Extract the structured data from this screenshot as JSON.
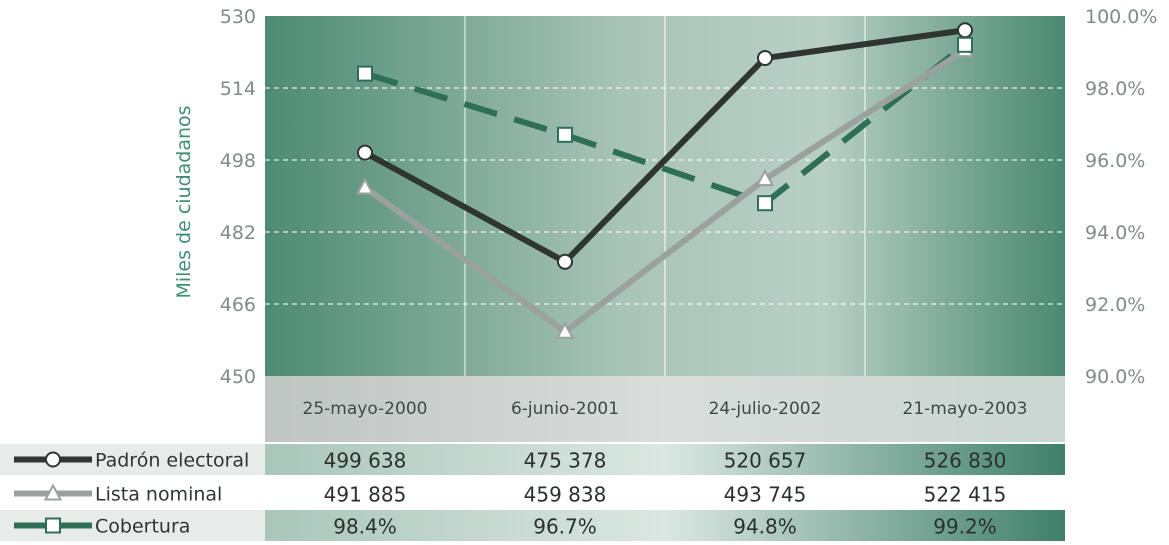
{
  "chart_data": {
    "type": "line",
    "ylabel": "Miles de ciudadanos",
    "categories": [
      "25-mayo-2000",
      "6-junio-2001",
      "24-julio-2002",
      "21-mayo-2003"
    ],
    "y_left": {
      "min": 450,
      "max": 530,
      "ticks": [
        "530",
        "514",
        "498",
        "482",
        "466",
        "450"
      ]
    },
    "y_right": {
      "min": 90,
      "max": 100,
      "ticks": [
        "100.0%",
        "98.0%",
        "96.0%",
        "94.0%",
        "92.0%",
        "90.0%"
      ]
    },
    "grid": true,
    "series": [
      {
        "name": "Padrón electoral",
        "axis": "left",
        "marker": "circle",
        "color": "#2f3533",
        "values": [
          499.638,
          475.378,
          520.657,
          526.83
        ],
        "labels": [
          "499 638",
          "475 378",
          "520 657",
          "526 830"
        ]
      },
      {
        "name": "Lista nominal",
        "axis": "left",
        "marker": "triangle",
        "color": "#9aa19f",
        "values": [
          491.885,
          459.838,
          493.745,
          522.415
        ],
        "labels": [
          "491 885",
          "459 838",
          "493 745",
          "522 415"
        ]
      },
      {
        "name": "Cobertura",
        "axis": "right",
        "marker": "square",
        "color": "#2f6f58",
        "dashed": true,
        "values": [
          98.4,
          96.7,
          94.8,
          99.2
        ],
        "labels": [
          "98.4%",
          "96.7%",
          "94.8%",
          "99.2%"
        ]
      }
    ]
  }
}
